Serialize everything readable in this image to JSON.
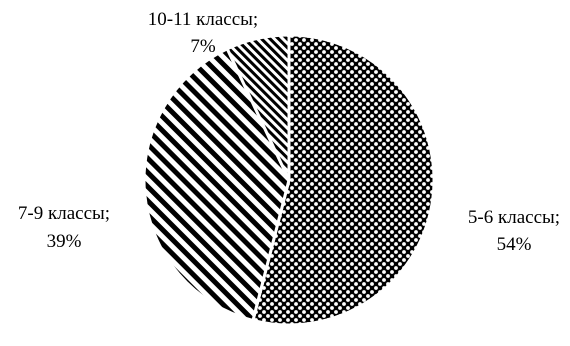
{
  "chart_data": {
    "type": "pie",
    "title": "",
    "slices": [
      {
        "label": "5-6 классы",
        "value": 54,
        "value_label": "54%",
        "pattern": "checker"
      },
      {
        "label": "7-9 классы",
        "value": 39,
        "value_label": "39%",
        "pattern": "diagonal"
      },
      {
        "label": "10-11 классы",
        "value": 7,
        "value_label": "7%",
        "pattern": "diagonal-dense"
      }
    ],
    "start_angle_deg": 0,
    "direction": "clockwise",
    "legend": "none",
    "colors": {
      "ink": "#000000",
      "paper": "#ffffff"
    }
  }
}
